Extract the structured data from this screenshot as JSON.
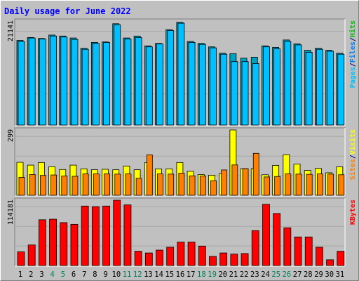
{
  "title": "Daily usage for June 2022",
  "colors": {
    "background": "#c0c0c0",
    "title": "#0000ff",
    "pages": "#00c0ff",
    "files": "#0080ff",
    "hits": "#00c000",
    "sites": "#ff8000",
    "visits": "#ffff00",
    "kbytes": "#ff0000",
    "weekend_label": "#00805c"
  },
  "chart_data": [
    {
      "type": "bar",
      "panel": "top",
      "ymax_label": "21141",
      "ymax": 21141,
      "legend": [
        "Pages",
        "/",
        "Files",
        "/",
        "Hits"
      ],
      "categories": [
        "1",
        "2",
        "3",
        "4",
        "5",
        "6",
        "7",
        "8",
        "9",
        "10",
        "11",
        "12",
        "13",
        "14",
        "15",
        "16",
        "17",
        "18",
        "19",
        "20",
        "21",
        "22",
        "23",
        "24",
        "25",
        "26",
        "27",
        "28",
        "29",
        "30",
        "31"
      ],
      "series": [
        {
          "name": "Hits",
          "values": [
            17200,
            17800,
            17600,
            18300,
            18100,
            17700,
            15600,
            16800,
            16900,
            20600,
            17700,
            18100,
            16100,
            16600,
            19400,
            20900,
            17000,
            16600,
            15900,
            14600,
            14500,
            13600,
            13800,
            16100,
            15800,
            17300,
            16500,
            15200,
            15600,
            15200,
            14600
          ]
        },
        {
          "name": "Files",
          "values": [
            17000,
            17700,
            17500,
            18100,
            17900,
            17400,
            15400,
            16600,
            16800,
            20400,
            17500,
            17800,
            15900,
            16500,
            19200,
            20700,
            16800,
            16400,
            15700,
            14400,
            12900,
            12900,
            12500,
            15900,
            15500,
            17000,
            16300,
            14800,
            15400,
            15000,
            14400
          ]
        }
      ]
    },
    {
      "type": "bar",
      "panel": "middle",
      "ymax_label": "299",
      "ymax": 299,
      "legend": [
        "Sites",
        "/",
        "Visits"
      ],
      "categories": [
        "1",
        "2",
        "3",
        "4",
        "5",
        "6",
        "7",
        "8",
        "9",
        "10",
        "11",
        "12",
        "13",
        "14",
        "15",
        "16",
        "17",
        "18",
        "19",
        "20",
        "21",
        "22",
        "23",
        "24",
        "25",
        "26",
        "27",
        "28",
        "29",
        "30",
        "31"
      ],
      "series": [
        {
          "name": "Visits",
          "values": [
            151,
            138,
            150,
            131,
            118,
            138,
            121,
            117,
            119,
            117,
            134,
            117,
            150,
            121,
            121,
            150,
            110,
            95,
            92,
            100,
            299,
            122,
            122,
            94,
            137,
            186,
            143,
            114,
            123,
            103,
            130
          ]
        },
        {
          "name": "Sites",
          "values": [
            82,
            95,
            91,
            93,
            88,
            87,
            98,
            98,
            98,
            97,
            98,
            78,
            185,
            98,
            97,
            101,
            89,
            88,
            67,
            116,
            139,
            122,
            192,
            84,
            86,
            98,
            97,
            96,
            98,
            97,
            94
          ]
        }
      ]
    },
    {
      "type": "bar",
      "panel": "bottom",
      "ymax_label": "114181",
      "ymax": 114181,
      "legend": [
        "KBytes"
      ],
      "categories": [
        "1",
        "2",
        "3",
        "4",
        "5",
        "6",
        "7",
        "8",
        "9",
        "10",
        "11",
        "12",
        "13",
        "14",
        "15",
        "16",
        "17",
        "18",
        "19",
        "20",
        "21",
        "22",
        "23",
        "24",
        "25",
        "26",
        "27",
        "28",
        "29",
        "30",
        "31"
      ],
      "series": [
        {
          "name": "KBytes",
          "values": [
            24000,
            36000,
            80000,
            81000,
            75000,
            72000,
            104000,
            103000,
            104000,
            114181,
            106000,
            25000,
            22000,
            27000,
            32000,
            41000,
            41000,
            34000,
            16000,
            22000,
            20000,
            21000,
            61000,
            107000,
            91000,
            66000,
            50000,
            50000,
            32000,
            10000,
            25000
          ]
        }
      ]
    }
  ],
  "x_labels": [
    "1",
    "2",
    "3",
    "4",
    "5",
    "6",
    "7",
    "8",
    "9",
    "10",
    "11",
    "12",
    "13",
    "14",
    "15",
    "16",
    "17",
    "18",
    "19",
    "20",
    "21",
    "22",
    "23",
    "24",
    "25",
    "26",
    "27",
    "28",
    "29",
    "30",
    "31"
  ],
  "weekend_days": [
    4,
    5,
    11,
    12,
    18,
    19,
    25,
    26
  ]
}
